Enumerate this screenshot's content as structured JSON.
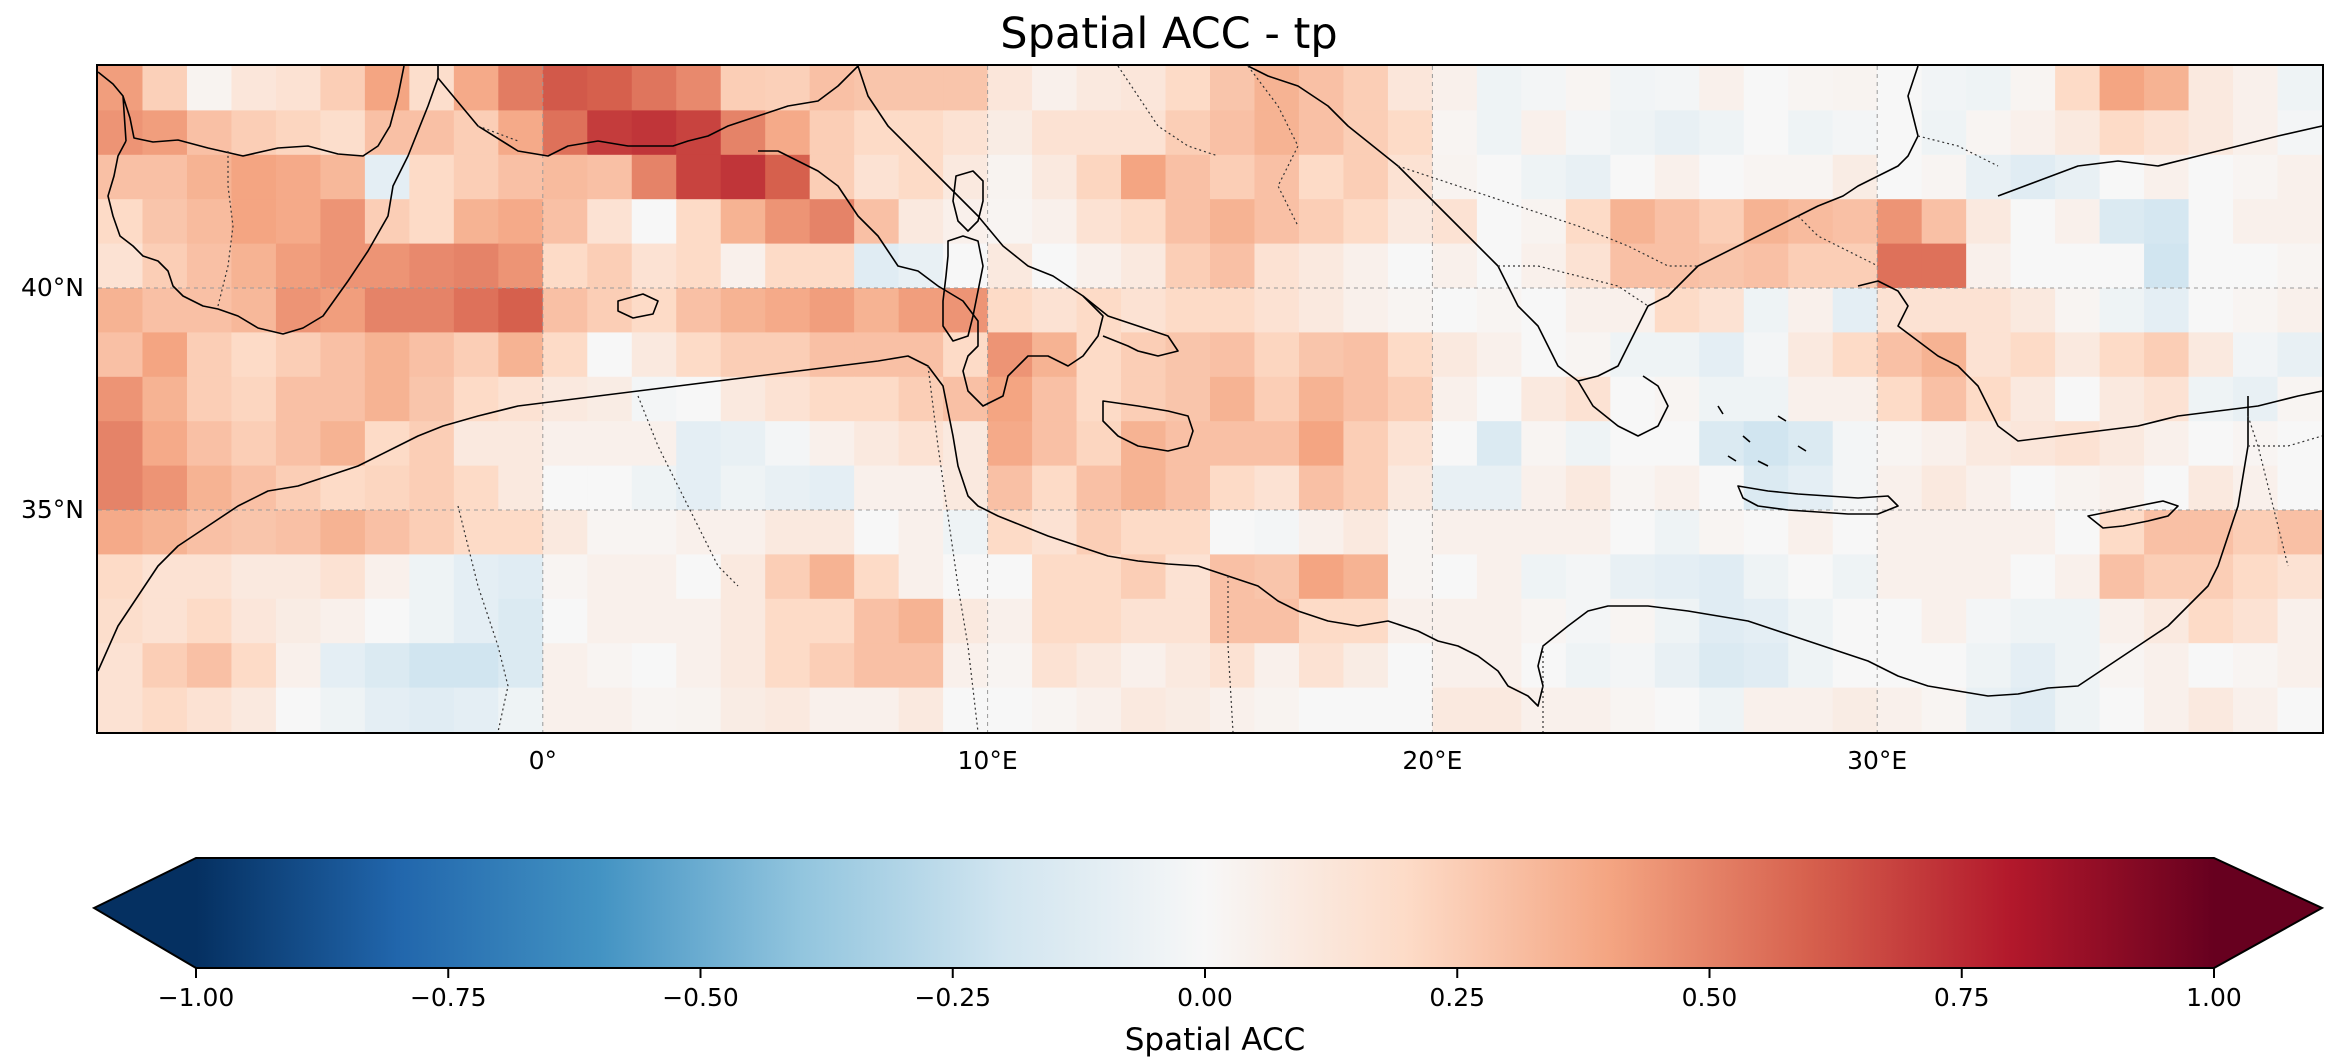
{
  "title": "Spatial ACC - tp",
  "map": {
    "extent": {
      "lon": [
        -10,
        40
      ],
      "lat": [
        30,
        45
      ]
    },
    "grid_lines": true,
    "lat_ticks": [
      {
        "value": 40,
        "label": "40°N"
      },
      {
        "value": 35,
        "label": "35°N"
      }
    ],
    "lon_ticks": [
      {
        "value": 0,
        "label": "0°"
      },
      {
        "value": 10,
        "label": "10°E"
      },
      {
        "value": 20,
        "label": "20°E"
      },
      {
        "value": 30,
        "label": "30°E"
      }
    ],
    "cell_size_deg": 1,
    "acc_rows": [
      "0.42 0.24 0.03 0.12 0.15 0.25 0.4 0.18 0.38 0.52 0.62 0.6 0.54 0.48 0.25 0.24 0.3 0.28 0.28 0.28 0.12 0.05 0.1 0.12 0.2 0.28 0.35 0.3 0.25 0.12 0.05 -0.05 -0.02 0.02 -0.03 -0.02 0.05 0.0 0.02 0.03 0.0 -0.03 -0.05 0.02 0.2 0.4 0.35 0.1 0.05 -0.05",
      "0.45 0.42 0.3 0.25 0.22 0.18 0.3 0.3 0.25 0.38 0.55 0.7 0.72 0.68 0.5 0.38 0.25 0.2 0.2 0.15 0.08 0.15 0.15 0.15 0.25 0.3 0.35 0.3 0.25 0.2 0.02 -0.05 0.05 -0.02 -0.05 -0.08 -0.05 0.0 -0.05 -0.02 0.0 -0.05 0.02 0.05 0.1 0.2 0.15 0.1 0.05 -0.02",
      "0.3 0.3 0.35 0.4 0.38 0.33 -0.1 0.2 0.25 0.3 0.32 0.3 0.5 0.68 0.72 0.6 0.25 0.15 0.2 0.1 0.03 0.1 0.22 0.4 0.3 0.25 0.3 0.2 0.25 0.15 0.03 0.0 -0.05 -0.08 0.0 0.05 0.0 0.02 0.02 0.08 0.0 0.02 -0.08 -0.12 -0.08 0.0 0.05 0.0 0.02 0.05",
      "0.2 0.28 0.32 0.4 0.38 0.45 0.25 0.2 0.35 0.38 0.3 0.15 0.0 0.2 0.35 0.45 0.5 0.3 0.1 0.05 0.02 0.05 0.15 0.2 0.3 0.35 0.3 0.25 0.2 0.1 0.15 0.0 0.03 0.2 0.35 0.3 0.25 0.35 0.32 0.3 0.45 0.3 0.1 0.0 0.05 -0.15 -0.18 0.0 0.05 0.05",
      "0.15 0.25 0.3 0.35 0.42 0.45 0.45 0.48 0.5 0.45 0.2 0.25 0.15 0.2 0.05 0.2 0.2 -0.12 -0.08 0.0 0.1 0.0 0.05 0.1 0.25 0.3 0.15 0.1 0.05 0.0 0.05 0.0 0.05 0.15 0.3 0.3 0.28 0.3 0.25 0.25 0.55 0.55 0.05 0.0 0.0 0.0 -0.2 0.0 0.0 0.02",
      "0.35 0.3 0.3 0.33 0.45 0.42 0.5 0.5 0.55 0.6 0.3 0.25 0.2 0.3 0.35 0.38 0.42 0.35 0.42 0.45 0.2 0.15 0.2 0.15 0.2 0.2 0.15 0.1 0.05 0.02 0.0 0.02 0.0 0.05 0.05 0.2 0.15 -0.05 0.05 -0.1 0.15 0.15 0.15 0.1 0.02 -0.05 -0.1 0.0 0.02 0.05",
      "0.3 0.4 0.25 0.2 0.25 0.3 0.35 0.3 0.25 0.35 0.2 0.0 0.1 0.2 0.25 0.25 0.3 0.3 0.3 0.2 0.45 0.35 0.2 0.25 0.28 0.3 0.22 0.28 0.3 0.2 0.1 0.05 0.0 0.02 -0.05 -0.05 -0.1 -0.02 0.1 0.2 0.3 0.35 0.15 0.2 0.1 0.2 0.25 0.1 -0.03 -0.08",
      "0.45 0.35 0.25 0.22 0.3 0.3 0.35 0.28 0.2 0.15 0.1 0.08 -0.02 0.0 0.1 0.15 0.2 0.2 0.25 0.3 0.4 0.3 0.2 0.25 0.28 0.35 0.25 0.35 0.3 0.25 0.05 0.0 0.1 0.15 0.0 0.02 -0.05 -0.05 0.05 0.05 0.2 0.3 0.2 0.1 0.0 0.1 0.15 -0.05 -0.08 0.02",
      "0.5 0.38 0.3 0.25 0.3 0.35 0.2 0.25 0.1 0.1 0.05 0.05 0.05 -0.1 -0.08 -0.02 0.05 0.1 0.15 0.1 0.38 0.3 0.22 0.35 0.3 0.3 0.3 0.4 0.25 0.15 0.0 -0.15 0.02 -0.05 0.0 0.0 -0.15 -0.2 -0.15 -0.02 0.02 0.05 0.1 0.12 0.15 0.1 0.05 0.0 0.02 0.0",
      "0.5 0.45 0.35 0.3 0.25 0.2 0.22 0.25 0.2 0.1 0.0 0.0 -0.05 -0.1 -0.05 -0.08 -0.1 0.05 0.05 0.1 0.3 0.2 0.3 0.35 0.3 0.2 0.15 0.3 0.25 0.1 -0.08 -0.08 0.05 0.1 0.02 0.05 0.0 -0.15 -0.1 -0.02 0.05 0.1 0.05 0.0 0.03 0.05 0.0 0.1 0.05 0.0",
      "0.38 0.35 0.3 0.28 0.3 0.35 0.3 0.25 0.2 0.2 0.1 0.02 0.02 0.05 0.05 0.1 0.1 0.0 0.05 -0.05 0.2 0.15 0.25 0.2 0.2 0.0 -0.02 0.05 0.1 0.02 0.05 0.05 0.05 0.05 0.0 -0.05 0.02 0.0 0.05 0.0 0.05 0.05 0.05 0.05 0.0 0.2 0.3 0.3 0.25 0.3",
      "0.2 0.15 0.15 0.1 0.1 0.15 0.05 -0.05 -0.1 -0.12 0.02 0.05 0.05 0.0 0.1 0.25 0.35 0.2 0.05 0.0 0.0 0.2 0.2 0.25 0.15 0.3 0.28 0.4 0.35 0.02 0.0 0.05 -0.05 -0.02 -0.08 -0.1 -0.12 -0.05 0.0 -0.05 0.05 0.05 0.05 0.0 0.05 0.3 0.25 0.25 0.2 0.15",
      "0.18 0.15 0.2 0.12 0.08 0.05 0.0 -0.05 -0.1 -0.15 0.0 0.05 0.05 0.05 0.1 0.2 0.2 0.3 0.35 0.1 0.05 0.2 0.2 0.15 0.15 0.3 0.3 0.2 0.2 0.05 0.05 0.05 0.02 -0.02 0.02 -0.05 -0.12 -0.1 -0.05 0.0 0.0 0.05 -0.02 -0.05 -0.05 0.05 0.1 0.2 0.15 0.05",
      "0.15 0.25 0.3 0.2 0.05 -0.1 -0.15 -0.2 -0.2 -0.15 0.05 0.02 0.0 0.05 0.1 0.2 0.25 0.3 0.3 0.05 0.02 0.15 0.1 0.05 0.1 0.15 0.05 0.15 0.08 0.0 0.05 0.05 0.0 -0.05 -0.02 -0.08 -0.15 -0.12 -0.05 0.0 0.0 0.0 -0.05 -0.1 -0.05 0.02 0.05 0.0 0.02 0.05",
      "0.15 0.2 0.15 0.1 0.0 -0.05 -0.1 -0.12 -0.1 -0.05 0.05 0.05 0.02 0.03 0.08 0.1 0.05 0.05 0.1 0.0 0.0 0.02 0.05 0.1 0.08 0.05 0.03 0.0 0.0 0.0 0.1 0.1 0.05 0.05 0.02 0.0 -0.05 0.05 0.05 0.08 0.05 0.02 -0.08 -0.12 -0.05 0.0 0.05 0.1 0.05 0.0"
    ]
  },
  "colorbar": {
    "label": "Spatial ACC",
    "range": [
      -1,
      1
    ],
    "extend": "both",
    "ticks": [
      "−1.00",
      "−0.75",
      "−0.50",
      "−0.25",
      "0.00",
      "0.25",
      "0.50",
      "0.75",
      "1.00"
    ],
    "colormap": [
      "#053061",
      "#2166ac",
      "#4393c3",
      "#92c5de",
      "#d1e5f0",
      "#f7f7f7",
      "#fddbc7",
      "#f4a582",
      "#d6604d",
      "#b2182b",
      "#67001f"
    ]
  },
  "colors": {
    "coastline": "#000000",
    "border": "#333333",
    "gridline": "#999999"
  }
}
